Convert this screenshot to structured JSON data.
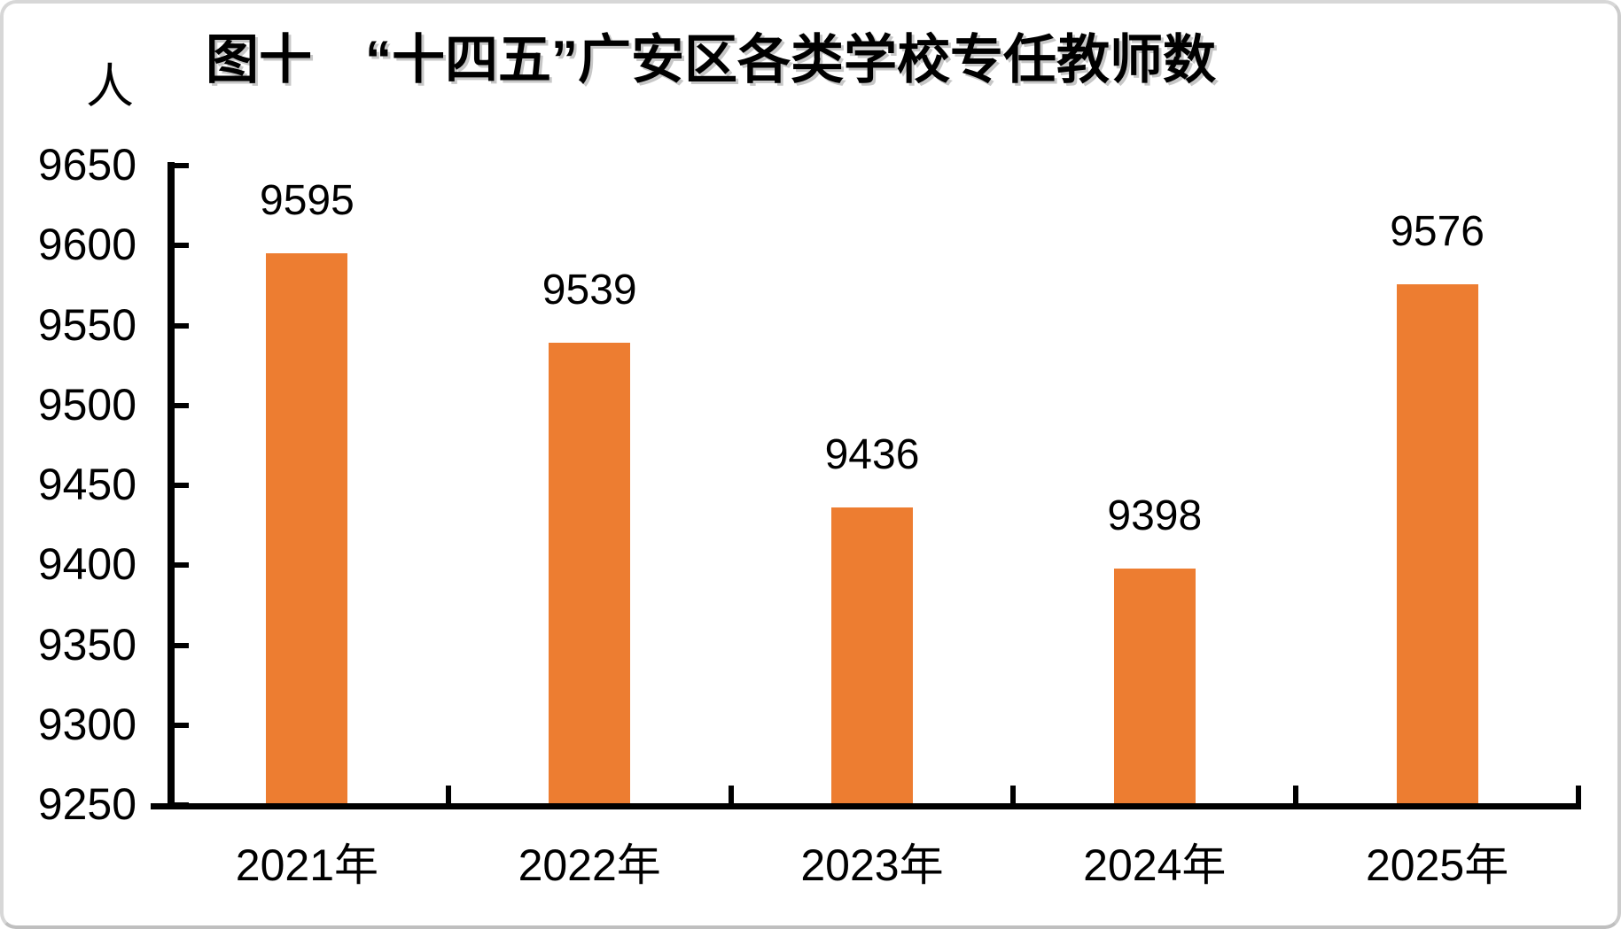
{
  "chart_data": {
    "type": "bar",
    "title": "图十　“十四五”广安区各类学校专任教师数",
    "unit_label": "人",
    "categories": [
      "2021年",
      "2022年",
      "2023年",
      "2024年",
      "2025年"
    ],
    "values": [
      9595,
      9539,
      9436,
      9398,
      9576
    ],
    "data_labels": [
      9595,
      9539,
      9436,
      9398,
      9576
    ],
    "ylim": [
      9250,
      9650
    ],
    "ytick_step": 50,
    "yticks": [
      9650,
      9600,
      9550,
      9500,
      9450,
      9400,
      9350,
      9300,
      9250
    ],
    "bar_color": "#ED7D31",
    "axis_color": "#000000",
    "grid": false,
    "legend_position": "none"
  }
}
